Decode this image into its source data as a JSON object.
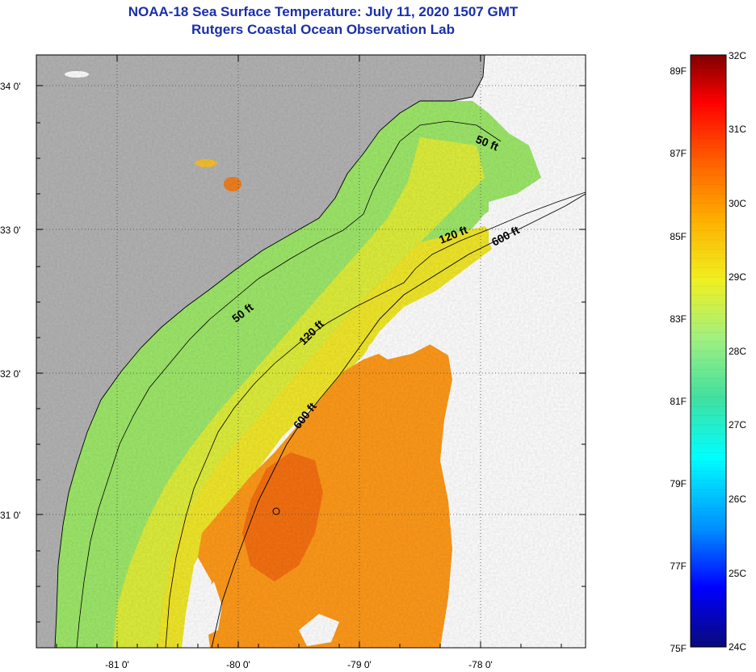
{
  "title_line1": "NOAA-18 Sea Surface Temperature:  July 11, 2020 1507 GMT",
  "title_line2": "Rutgers Coastal Ocean Observation Lab",
  "lat_labels": [
    "34 0'",
    "33 0'",
    "32 0'",
    "31 0'"
  ],
  "lon_labels": [
    "-81 0'",
    "-80 0'",
    "-79 0'",
    "-78 0'"
  ],
  "contour_labels": {
    "c50_north": "50 ft",
    "c50_mid": "50 ft",
    "c120_north": "120 ft",
    "c120_mid": "120 ft",
    "c600_north": "600 ft",
    "c600_mid": "600 ft"
  },
  "colorbar": {
    "f_labels": [
      "89F",
      "87F",
      "85F",
      "83F",
      "81F",
      "79F",
      "77F",
      "75F"
    ],
    "c_labels": [
      "32C",
      "31C",
      "30C",
      "29C",
      "28C",
      "27C",
      "26C",
      "25C",
      "24C"
    ],
    "stops": [
      "#0a0a7a",
      "#0000ff",
      "#00a0ff",
      "#00ffff",
      "#40e0a0",
      "#a0f080",
      "#f0f020",
      "#ffb000",
      "#ff6000",
      "#ff0000",
      "#800000"
    ]
  },
  "colors": {
    "land": "#b4b4b4",
    "cloud": "#ffffff",
    "title": "#1a2fa8"
  }
}
